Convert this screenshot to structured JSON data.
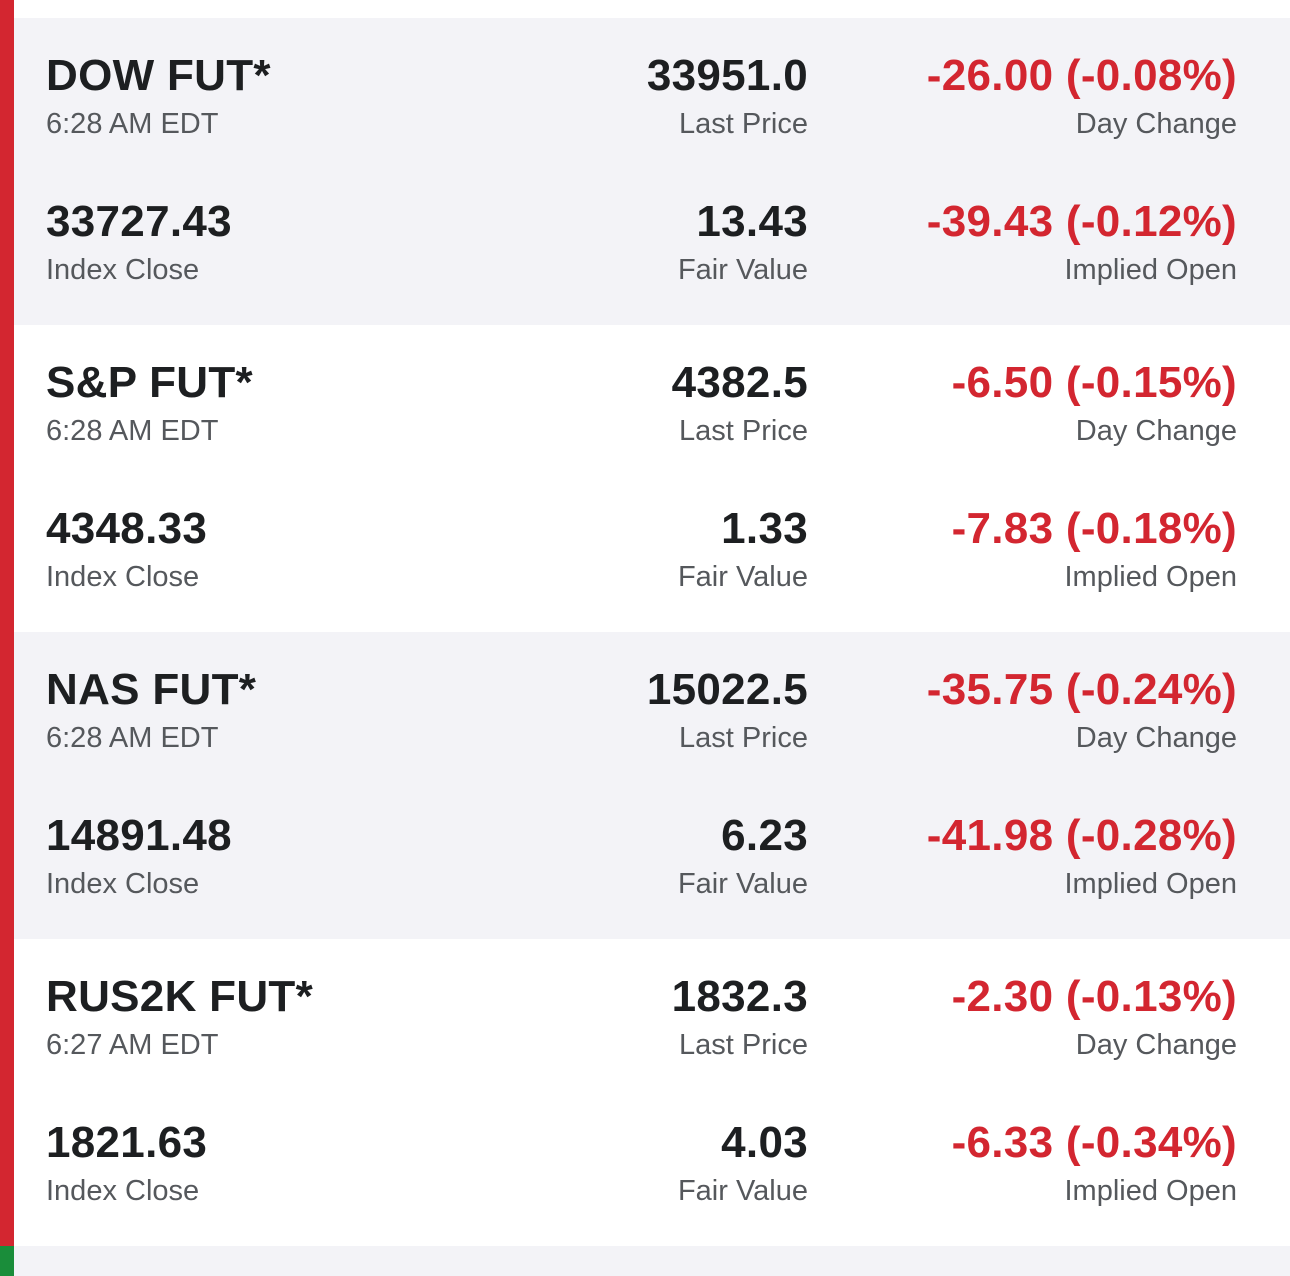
{
  "rows": [
    {
      "name": "DOW FUT*",
      "time": "6:28 AM EDT",
      "last_price": "33951.0",
      "last_price_label": "Last Price",
      "day_change": "-26.00 (-0.08%)",
      "day_change_label": "Day Change",
      "index_close": "33727.43",
      "index_close_label": "Index Close",
      "fair_value": "13.43",
      "fair_value_label": "Fair Value",
      "implied_open": "-39.43 (-0.12%)",
      "implied_open_label": "Implied Open"
    },
    {
      "name": "S&P FUT*",
      "time": "6:28 AM EDT",
      "last_price": "4382.5",
      "last_price_label": "Last Price",
      "day_change": "-6.50 (-0.15%)",
      "day_change_label": "Day Change",
      "index_close": "4348.33",
      "index_close_label": "Index Close",
      "fair_value": "1.33",
      "fair_value_label": "Fair Value",
      "implied_open": "-7.83 (-0.18%)",
      "implied_open_label": "Implied Open"
    },
    {
      "name": "NAS FUT*",
      "time": "6:28 AM EDT",
      "last_price": "15022.5",
      "last_price_label": "Last Price",
      "day_change": "-35.75 (-0.24%)",
      "day_change_label": "Day Change",
      "index_close": "14891.48",
      "index_close_label": "Index Close",
      "fair_value": "6.23",
      "fair_value_label": "Fair Value",
      "implied_open": "-41.98 (-0.28%)",
      "implied_open_label": "Implied Open"
    },
    {
      "name": "RUS2K FUT*",
      "time": "6:27 AM EDT",
      "last_price": "1832.3",
      "last_price_label": "Last Price",
      "day_change": "-2.30 (-0.13%)",
      "day_change_label": "Day Change",
      "index_close": "1821.63",
      "index_close_label": "Index Close",
      "fair_value": "4.03",
      "fair_value_label": "Fair Value",
      "implied_open": "-6.33 (-0.34%)",
      "implied_open_label": "Implied Open"
    }
  ],
  "colors": {
    "negative": "#d32630",
    "positive_stripe": "#1a8d3a",
    "shaded_bg": "#f3f3f7",
    "text_primary": "#1d1f21",
    "text_secondary": "#55585c"
  }
}
